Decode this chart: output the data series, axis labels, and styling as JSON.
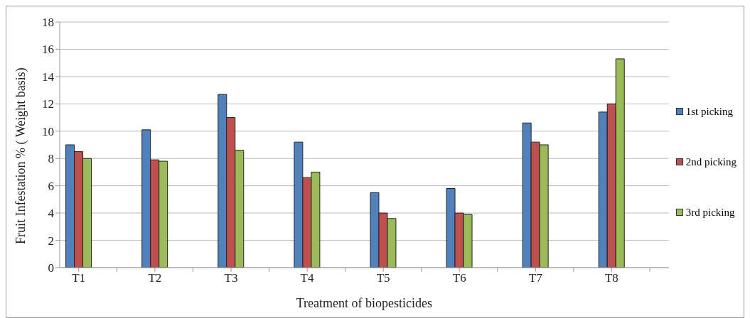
{
  "chart_data": {
    "type": "bar",
    "xlabel": "Treatment of biopesticides",
    "ylabel": "Fruit Infestation % ( Weight basis)",
    "categories": [
      "T1",
      null,
      "T2",
      null,
      "T3",
      null,
      "T4",
      null,
      "T5",
      null,
      "T6",
      null,
      "T7",
      null,
      "T8",
      null
    ],
    "series": [
      {
        "name": "1st  picking",
        "color": "#4f81bd",
        "values": [
          9.0,
          null,
          10.1,
          null,
          12.7,
          null,
          9.2,
          null,
          5.5,
          null,
          5.8,
          null,
          10.6,
          null,
          11.4,
          null
        ]
      },
      {
        "name": "2nd picking",
        "color": "#c0504d",
        "values": [
          8.5,
          null,
          7.9,
          null,
          11.0,
          null,
          6.6,
          null,
          4.0,
          null,
          4.0,
          null,
          9.2,
          null,
          12.0,
          null
        ]
      },
      {
        "name": "3rd picking",
        "color": "#9bbb59",
        "values": [
          8.0,
          null,
          7.8,
          null,
          8.6,
          null,
          7.0,
          null,
          3.6,
          null,
          3.9,
          null,
          9.0,
          null,
          15.3,
          null
        ]
      }
    ],
    "ylim": [
      0,
      18
    ],
    "yticks": [
      0,
      2,
      4,
      6,
      8,
      10,
      12,
      14,
      16,
      18
    ],
    "grid": "y",
    "legend": "right"
  }
}
